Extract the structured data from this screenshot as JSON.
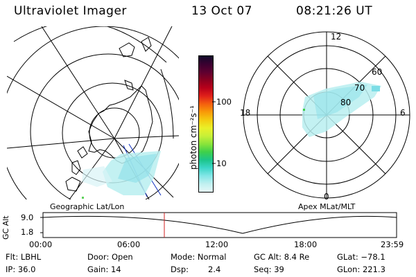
{
  "header": {
    "instrument": "Ultraviolet Imager",
    "date": "13 Oct 07",
    "time": "08:21:26 UT"
  },
  "left_panel": {
    "label": "Geographic Lat/Lon"
  },
  "right_panel": {
    "label": "Apex MLat/MLT",
    "mlt_labels": [
      "12",
      "18",
      "6",
      "0"
    ],
    "lat_labels": [
      "60",
      "70",
      "80"
    ]
  },
  "colorbar": {
    "unit_label": "photon cm⁻²s⁻¹",
    "tick_labels": [
      "100",
      "10"
    ],
    "colors": [
      "#120a2a",
      "#3a0030",
      "#5e0030",
      "#8a0020",
      "#b8001a",
      "#e0201a",
      "#f4600e",
      "#f89a08",
      "#f4cc10",
      "#eaf028",
      "#c8f038",
      "#8ae43a",
      "#3ed04a",
      "#1cc58a",
      "#3cd6c8",
      "#82e6e6",
      "#c0f0f0",
      "#e6f8f8"
    ]
  },
  "altitude_strip": {
    "axis_label": "GC Alt",
    "y_labels": [
      "9.0",
      "1.8"
    ],
    "x_labels": [
      "00:00",
      "06:00",
      "12:00",
      "18:00",
      "23:59"
    ],
    "marker_color": "#d02020"
  },
  "info": {
    "flt": "Flt: LBHL",
    "ip": "IP: 36.0",
    "door": "Door: Open",
    "gain": "Gain: 14",
    "mode": "Mode: Normal",
    "dsp_label": "Dsp:",
    "dsp_value": "2.4",
    "gc_alt": "GC Alt: 8.4 Re",
    "seq": "Seq: 39",
    "glat": "GLat: −78.1",
    "glon": "GLon: 221.3"
  },
  "colors": {
    "aurora": "#a8e8ec",
    "aurora_dense": "#7cdde6"
  }
}
